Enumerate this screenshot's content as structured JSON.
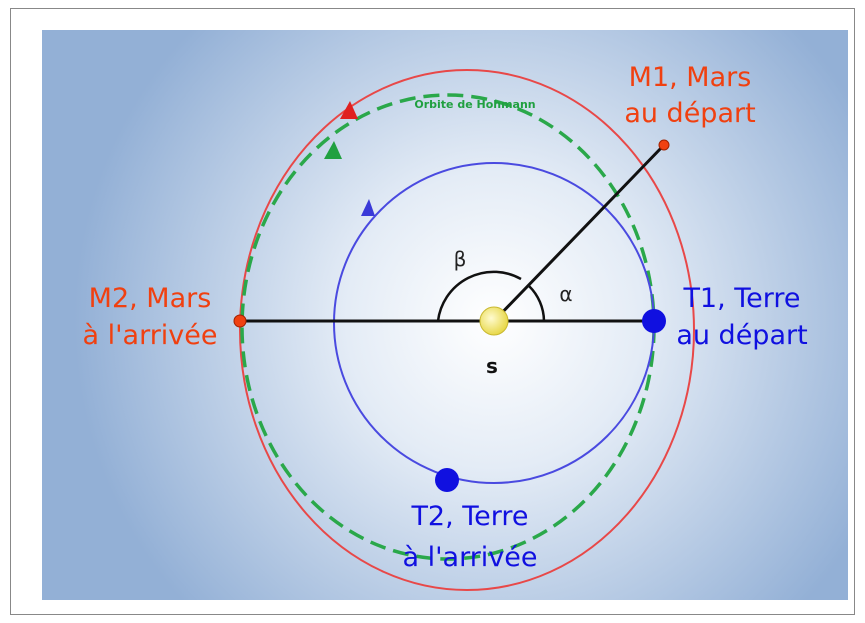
{
  "diagram": {
    "hohmann_label": "Orbite de Hohmann",
    "m1": {
      "line1": "M1, Mars",
      "line2": "au départ"
    },
    "m2": {
      "line1": "M2, Mars",
      "line2": "à l'arrivée"
    },
    "t1": {
      "line1": "T1, Terre",
      "line2": "au départ"
    },
    "t2": {
      "line1": "T2, Terre",
      "line2": "à l'arrivée"
    },
    "alpha": "α",
    "beta": "β",
    "sun": "s"
  }
}
